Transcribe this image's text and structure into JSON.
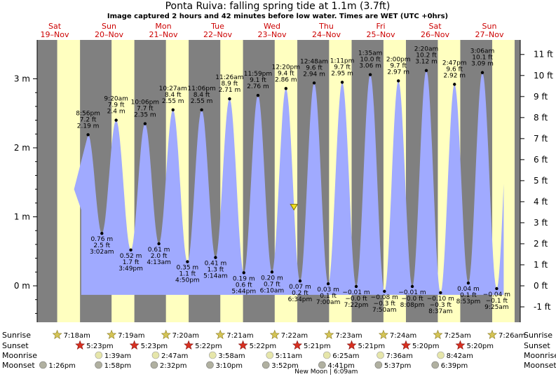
{
  "title": "Ponta Ruiva: falling  spring tide at 1.1m (3.7ft)",
  "subtitle": "Image captured 2 hours and 42 minutes before low water. Times are WET (UTC +0hrs)",
  "days": [
    {
      "dow": "Sat",
      "date": "19–Nov"
    },
    {
      "dow": "Sun",
      "date": "20–Nov"
    },
    {
      "dow": "Mon",
      "date": "21–Nov"
    },
    {
      "dow": "Tue",
      "date": "22–Nov"
    },
    {
      "dow": "Wed",
      "date": "23–Nov"
    },
    {
      "dow": "Thu",
      "date": "24–Nov"
    },
    {
      "dow": "Fri",
      "date": "25–Nov"
    },
    {
      "dow": "Sat",
      "date": "26–Nov"
    },
    {
      "dow": "Sun",
      "date": "27–Nov"
    }
  ],
  "row_labels": {
    "sunrise": "Sunrise",
    "sunset": "Sunset",
    "moonrise": "Moonrise",
    "moonset": "Moonset"
  },
  "sunrise": [
    "7:18am",
    "7:19am",
    "7:20am",
    "7:21am",
    "7:22am",
    "7:23am",
    "7:24am",
    "7:25am",
    "7:26am"
  ],
  "sunset": [
    "5:23pm",
    "5:23pm",
    "5:22pm",
    "5:22pm",
    "5:21pm",
    "5:21pm",
    "5:20pm",
    "5:20pm"
  ],
  "moonrise": [
    "1:39am",
    "2:47am",
    "3:58am",
    "5:11am",
    "6:25am",
    "7:36am",
    "8:42am"
  ],
  "moonset": [
    "1:26pm",
    "1:58pm",
    "2:32pm",
    "3:10pm",
    "3:52pm",
    "4:41pm",
    "5:37pm",
    "6:39pm"
  ],
  "new_moon_label": "New Moon | 6:09am",
  "colors": {
    "day": "#ffffc0",
    "night": "#808080",
    "tide": "#a0aaff",
    "sunrise": "#d4c455",
    "sunset": "#d83020",
    "moon": "#e6e6aa",
    "moonset": "#b0b0a0"
  },
  "chart_data": {
    "type": "area",
    "title": "Ponta Ruiva: falling  spring tide at 1.1m (3.7ft)",
    "current": {
      "time": "23-Nov 15:52",
      "height_m": 1.1,
      "height_ft": 3.7
    },
    "y_left_ticks": [
      "0 m",
      "1 m",
      "2 m",
      "3 m"
    ],
    "y_right_ticks": [
      "-1 ft",
      "0 ft",
      "1 ft",
      "2 ft",
      "3 ft",
      "4 ft",
      "5 ft",
      "6 ft",
      "7 ft",
      "8 ft",
      "9 ft",
      "10 ft",
      "11 ft"
    ],
    "ylim_m": [
      -0.45,
      3.6
    ],
    "events": [
      {
        "type": "high",
        "time": "8:56 pm",
        "m": "2.19 m",
        "ft": "7.2 ft"
      },
      {
        "type": "low",
        "time": "3:02 am",
        "m": "0.76 m",
        "ft": "2.5 ft"
      },
      {
        "type": "high",
        "time": "9:20 am",
        "m": "2.4 m",
        "ft": "7.9 ft"
      },
      {
        "type": "low",
        "time": "3:49 pm",
        "m": "0.52 m",
        "ft": "1.7 ft"
      },
      {
        "type": "high",
        "time": "10:06 pm",
        "m": "2.35 m",
        "ft": "7.7 ft"
      },
      {
        "type": "low",
        "time": "4:13 am",
        "m": "0.61 m",
        "ft": "2.0 ft"
      },
      {
        "type": "high",
        "time": "10:27 am",
        "m": "2.55 m",
        "ft": "8.4 ft"
      },
      {
        "type": "low",
        "time": "4:50 pm",
        "m": "0.35 m",
        "ft": "1.1 ft"
      },
      {
        "type": "high",
        "time": "11:06 pm",
        "m": "2.55 m",
        "ft": "8.4 ft"
      },
      {
        "type": "low",
        "time": "5:14 am",
        "m": "0.41 m",
        "ft": "1.3 ft"
      },
      {
        "type": "high",
        "time": "11:26 am",
        "m": "2.71 m",
        "ft": "8.9 ft"
      },
      {
        "type": "low",
        "time": "5:44 pm",
        "m": "0.19 m",
        "ft": "0.6 ft"
      },
      {
        "type": "high",
        "time": "11:59 pm",
        "m": "2.76 m",
        "ft": "9.1 ft"
      },
      {
        "type": "low",
        "time": "6:10 am",
        "m": "0.20 m",
        "ft": "0.7 ft"
      },
      {
        "type": "high",
        "time": "12:20 pm",
        "m": "2.86 m",
        "ft": "9.4 ft"
      },
      {
        "type": "low",
        "time": "6:34 pm",
        "m": "0.07 m",
        "ft": "0.2 ft"
      },
      {
        "type": "high",
        "time": "12:48 am",
        "m": "2.94 m",
        "ft": "9.6 ft"
      },
      {
        "type": "low",
        "time": "7:00 am",
        "m": "0.03 m",
        "ft": "0.1 ft"
      },
      {
        "type": "high",
        "time": "1:11 pm",
        "m": "2.95 m",
        "ft": "9.7 ft"
      },
      {
        "type": "low",
        "time": "7:22 pm",
        "m": "−0.01 m",
        "ft": "−0.0 ft"
      },
      {
        "type": "high",
        "time": "1:35 am",
        "m": "3.06 m",
        "ft": "10.0 ft"
      },
      {
        "type": "low",
        "time": "7:50 am",
        "m": "−0.08 m",
        "ft": "−0.3 ft"
      },
      {
        "type": "high",
        "time": "2:00 pm",
        "m": "2.97 m",
        "ft": "9.7 ft"
      },
      {
        "type": "low",
        "time": "8:08 pm",
        "m": "−0.01 m",
        "ft": "−0.0 ft"
      },
      {
        "type": "high",
        "time": "2:20 am",
        "m": "3.12 m",
        "ft": "10.2 ft"
      },
      {
        "type": "low",
        "time": "8:37 am",
        "m": "−0.10 m",
        "ft": "−0.3 ft"
      },
      {
        "type": "high",
        "time": "2:47 pm",
        "m": "2.92 m",
        "ft": "9.6 ft"
      },
      {
        "type": "low",
        "time": "8:53 pm",
        "m": "0.04 m",
        "ft": "0.1 ft"
      },
      {
        "type": "high",
        "time": "3:06 am",
        "m": "3.09 m",
        "ft": "10.1 ft"
      },
      {
        "type": "low",
        "time": "9:25 am",
        "m": "−0.04 m",
        "ft": "−0.1 ft"
      }
    ]
  }
}
